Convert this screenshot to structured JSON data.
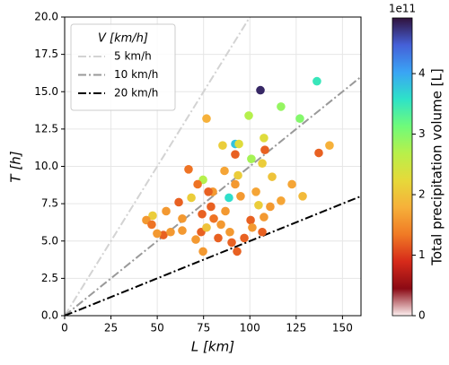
{
  "chart_data": {
    "type": "scatter",
    "xlabel": "L [km]",
    "ylabel": "T [h]",
    "xlim": [
      0,
      160
    ],
    "xticks": [
      0,
      25,
      50,
      75,
      100,
      125,
      150
    ],
    "ylim": [
      0,
      20
    ],
    "yticks": [
      {
        "value": 0,
        "label": "0.0"
      },
      {
        "value": 2.5,
        "label": "2.5"
      },
      {
        "value": 5,
        "label": "5.0"
      },
      {
        "value": 7.5,
        "label": "7.5"
      },
      {
        "value": 10,
        "label": "10.0"
      },
      {
        "value": 12.5,
        "label": "12.5"
      },
      {
        "value": 15,
        "label": "15.0"
      },
      {
        "value": 17.5,
        "label": "17.5"
      },
      {
        "value": 20,
        "label": "20.0"
      }
    ],
    "grid": true,
    "legend_title": "V [km/h]",
    "legend_position": "upper left",
    "lines": [
      {
        "name": "5 km/h",
        "speed": 5,
        "color": "#d3d3d3",
        "dash": "9 3 2 3"
      },
      {
        "name": "10 km/h",
        "speed": 10,
        "color": "#999999",
        "dash": "9 3 2 3"
      },
      {
        "name": "20 km/h",
        "speed": 20,
        "color": "#000000",
        "dash": "9 3 2 3"
      }
    ],
    "colorbar": {
      "label": "Total precipitation volume [L]",
      "offset_label": "1e11",
      "lim": [
        0,
        4.92
      ],
      "ticks": [
        0,
        1,
        2,
        3,
        4
      ],
      "colormap": [
        "#fdf0f0",
        "#8b0a14",
        "#d62a1a",
        "#f07a25",
        "#f6b03a",
        "#e6d93a",
        "#b8f04a",
        "#6ffb7a",
        "#2ee2c8",
        "#3aa4f5",
        "#4560d8",
        "#30123b"
      ]
    },
    "x": [
      105.7,
      136.2,
      116.8,
      127.0,
      99.4,
      76.6,
      107.6,
      85.3,
      92.1,
      94.1,
      143.0,
      108.1,
      100.8,
      92.1,
      137.2,
      106.7,
      66.9,
      86.3,
      74.7,
      93.6,
      112.0,
      71.8,
      122.7,
      92.1,
      80.0,
      77.6,
      68.4,
      61.6,
      88.7,
      95.0,
      103.3,
      104.7,
      111.0,
      116.8,
      128.5,
      86.8,
      74.2,
      80.5,
      47.5,
      54.8,
      44.1,
      47.0,
      63.5,
      79.0,
      100.4,
      107.6,
      63.5,
      73.7,
      76.6,
      89.2,
      101.3,
      97.0,
      82.9,
      53.3,
      49.9,
      70.8,
      90.2,
      106.7,
      57.2,
      74.7,
      93.1,
      84.4
    ],
    "y": [
      15.1,
      15.7,
      14.0,
      13.2,
      13.4,
      13.2,
      11.9,
      11.4,
      11.5,
      11.5,
      11.4,
      11.1,
      10.5,
      10.8,
      10.9,
      10.2,
      9.8,
      9.7,
      9.1,
      9.4,
      9.3,
      8.8,
      8.8,
      8.8,
      8.3,
      8.3,
      7.9,
      7.6,
      7.9,
      8.0,
      8.3,
      7.4,
      7.3,
      7.7,
      8.0,
      7.0,
      6.8,
      6.5,
      6.7,
      7.0,
      6.4,
      6.1,
      6.5,
      7.3,
      6.4,
      6.6,
      5.7,
      5.6,
      5.9,
      5.6,
      5.9,
      5.2,
      5.2,
      5.4,
      5.5,
      5.1,
      4.9,
      5.6,
      5.6,
      4.3,
      4.3,
      6.1
    ],
    "c": [
      4.8,
      3.5,
      2.9,
      3.0,
      2.7,
      1.8,
      2.3,
      2.1,
      3.8,
      2.3,
      1.8,
      1.2,
      2.8,
      1.2,
      1.2,
      2.1,
      1.3,
      1.7,
      2.7,
      2.1,
      2.0,
      1.3,
      1.7,
      1.6,
      1.6,
      1.2,
      2.1,
      1.2,
      3.6,
      1.6,
      1.7,
      2.1,
      1.6,
      1.7,
      1.9,
      1.6,
      1.2,
      1.3,
      2.1,
      1.6,
      1.6,
      1.3,
      1.6,
      1.2,
      1.2,
      1.6,
      1.6,
      1.2,
      2.0,
      1.6,
      1.6,
      1.2,
      1.2,
      1.2,
      1.6,
      1.6,
      1.2,
      1.2,
      1.6,
      1.6,
      1.2,
      1.6
    ]
  }
}
